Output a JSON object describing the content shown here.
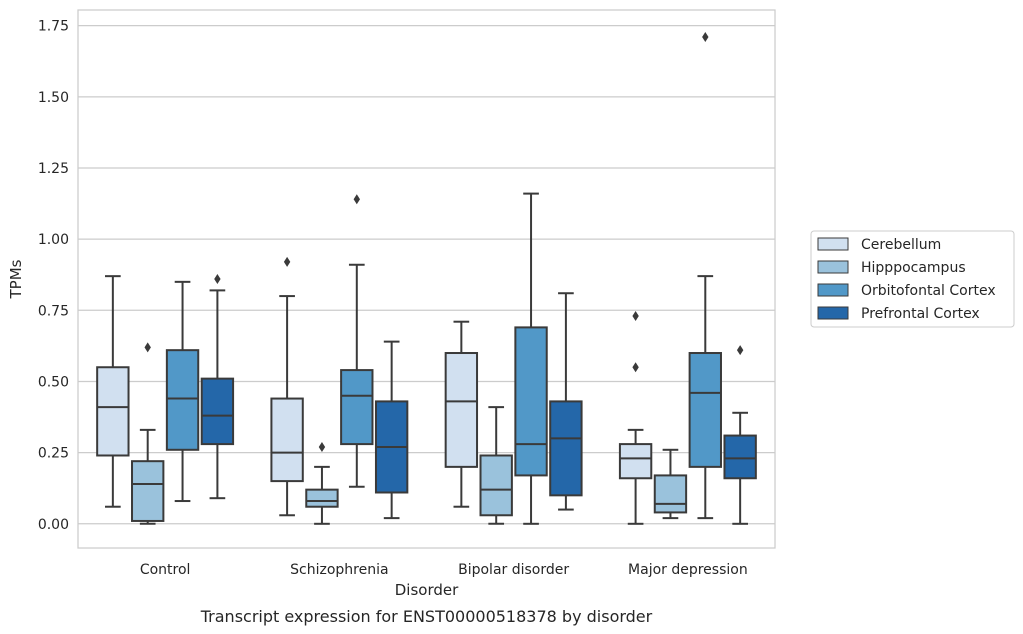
{
  "chart_data": {
    "type": "box",
    "title": "Transcript expression for ENST00000518378 by disorder",
    "xlabel": "Disorder",
    "ylabel": "TPMs",
    "ylim": [
      -0.085,
      1.805
    ],
    "yticks": [
      "0.00",
      "0.25",
      "0.50",
      "0.75",
      "1.00",
      "1.25",
      "1.50",
      "1.75"
    ],
    "grid": "horizontal",
    "legend_position": "right",
    "categories": [
      "Control",
      "Schizophrenia",
      "Bipolar disorder",
      "Major depression"
    ],
    "series": [
      {
        "name": "Cerebellum",
        "color": "#d1e0f0",
        "boxes": [
          {
            "whislo": 0.06,
            "q1": 0.24,
            "med": 0.41,
            "q3": 0.55,
            "whishi": 0.87,
            "fliers": []
          },
          {
            "whislo": 0.03,
            "q1": 0.15,
            "med": 0.25,
            "q3": 0.44,
            "whishi": 0.8,
            "fliers": [
              0.92
            ]
          },
          {
            "whislo": 0.06,
            "q1": 0.2,
            "med": 0.43,
            "q3": 0.6,
            "whishi": 0.71,
            "fliers": []
          },
          {
            "whislo": 0.0,
            "q1": 0.16,
            "med": 0.23,
            "q3": 0.28,
            "whishi": 0.33,
            "fliers": [
              0.55,
              0.73
            ]
          }
        ]
      },
      {
        "name": "Hipppocampus",
        "color": "#9ac2dc",
        "boxes": [
          {
            "whislo": 0.0,
            "q1": 0.01,
            "med": 0.14,
            "q3": 0.22,
            "whishi": 0.33,
            "fliers": [
              0.62
            ]
          },
          {
            "whislo": 0.0,
            "q1": 0.06,
            "med": 0.08,
            "q3": 0.12,
            "whishi": 0.2,
            "fliers": [
              0.27
            ]
          },
          {
            "whislo": 0.0,
            "q1": 0.03,
            "med": 0.12,
            "q3": 0.24,
            "whishi": 0.41,
            "fliers": []
          },
          {
            "whislo": 0.02,
            "q1": 0.04,
            "med": 0.07,
            "q3": 0.17,
            "whishi": 0.26,
            "fliers": []
          }
        ]
      },
      {
        "name": "Orbitofontal Cortex",
        "color": "#5198c8",
        "boxes": [
          {
            "whislo": 0.08,
            "q1": 0.26,
            "med": 0.44,
            "q3": 0.61,
            "whishi": 0.85,
            "fliers": []
          },
          {
            "whislo": 0.13,
            "q1": 0.28,
            "med": 0.45,
            "q3": 0.54,
            "whishi": 0.91,
            "fliers": [
              1.14
            ]
          },
          {
            "whislo": 0.0,
            "q1": 0.17,
            "med": 0.28,
            "q3": 0.69,
            "whishi": 1.16,
            "fliers": []
          },
          {
            "whislo": 0.02,
            "q1": 0.2,
            "med": 0.46,
            "q3": 0.6,
            "whishi": 0.87,
            "fliers": [
              1.71
            ]
          }
        ]
      },
      {
        "name": "Prefrontal Cortex",
        "color": "#2467a9",
        "boxes": [
          {
            "whislo": 0.09,
            "q1": 0.28,
            "med": 0.38,
            "q3": 0.51,
            "whishi": 0.82,
            "fliers": [
              0.86
            ]
          },
          {
            "whislo": 0.02,
            "q1": 0.11,
            "med": 0.27,
            "q3": 0.43,
            "whishi": 0.64,
            "fliers": []
          },
          {
            "whislo": 0.05,
            "q1": 0.1,
            "med": 0.3,
            "q3": 0.43,
            "whishi": 0.81,
            "fliers": []
          },
          {
            "whislo": 0.0,
            "q1": 0.16,
            "med": 0.23,
            "q3": 0.31,
            "whishi": 0.39,
            "fliers": [
              0.61
            ]
          }
        ]
      }
    ]
  }
}
